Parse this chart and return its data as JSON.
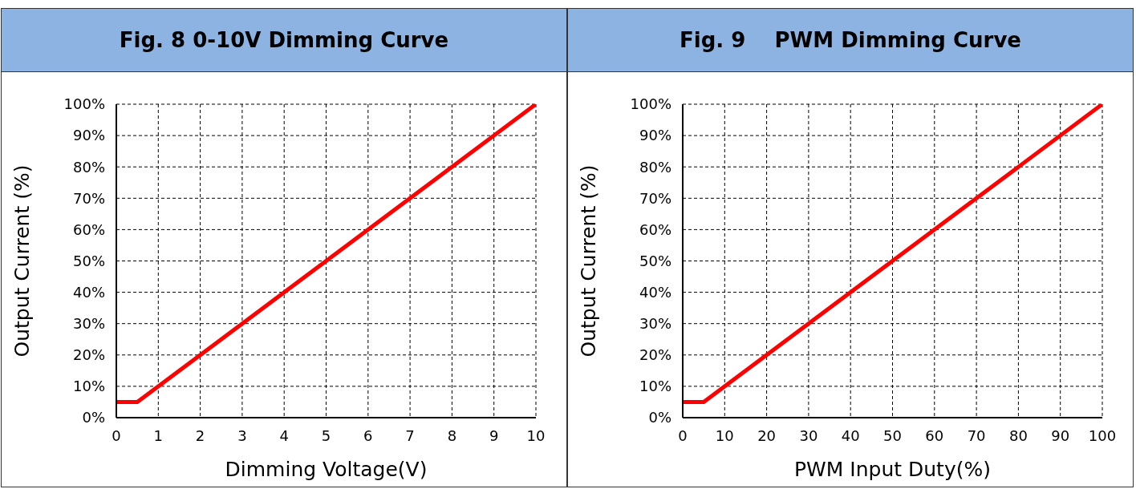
{
  "chart_data": [
    {
      "type": "line",
      "title": "Fig. 8 0-10V Dimming Curve",
      "xlabel": "Dimming Voltage(V)",
      "ylabel": "Output  Current (%)",
      "grid": true,
      "marker": "none",
      "line_style": "solid",
      "series": [
        {
          "color": "#ff0000",
          "x": [
            0,
            0.5,
            10
          ],
          "values": [
            5,
            5,
            100
          ]
        }
      ],
      "xlim": [
        0,
        10
      ],
      "xticks": [
        0,
        1,
        2,
        3,
        4,
        5,
        6,
        7,
        8,
        9,
        10
      ],
      "ylim": [
        0,
        100
      ],
      "yticks": [
        {
          "value": 0,
          "label": "0%"
        },
        {
          "value": 10,
          "label": "10%"
        },
        {
          "value": 20,
          "label": "20%"
        },
        {
          "value": 30,
          "label": "30%"
        },
        {
          "value": 40,
          "label": "40%"
        },
        {
          "value": 50,
          "label": "50%"
        },
        {
          "value": 60,
          "label": "60%"
        },
        {
          "value": 70,
          "label": "70%"
        },
        {
          "value": 80,
          "label": "80%"
        },
        {
          "value": 90,
          "label": "90%"
        },
        {
          "value": 100,
          "label": "100%"
        }
      ]
    },
    {
      "type": "line",
      "title": "Fig. 9    PWM Dimming Curve",
      "xlabel": "PWM Input Duty(%)",
      "ylabel": "Output  Current (%)",
      "grid": true,
      "marker": "none",
      "line_style": "solid",
      "series": [
        {
          "color": "#ff0000",
          "x": [
            0,
            5,
            100
          ],
          "values": [
            5,
            5,
            100
          ]
        }
      ],
      "xlim": [
        0,
        100
      ],
      "xticks": [
        0,
        10,
        20,
        30,
        40,
        50,
        60,
        70,
        80,
        90,
        100
      ],
      "ylim": [
        0,
        100
      ],
      "yticks": [
        {
          "value": 0,
          "label": "0%"
        },
        {
          "value": 10,
          "label": "10%"
        },
        {
          "value": 20,
          "label": "20%"
        },
        {
          "value": 30,
          "label": "30%"
        },
        {
          "value": 40,
          "label": "40%"
        },
        {
          "value": 50,
          "label": "50%"
        },
        {
          "value": 60,
          "label": "60%"
        },
        {
          "value": 70,
          "label": "70%"
        },
        {
          "value": 80,
          "label": "80%"
        },
        {
          "value": 90,
          "label": "90%"
        },
        {
          "value": 100,
          "label": "100%"
        }
      ]
    }
  ]
}
